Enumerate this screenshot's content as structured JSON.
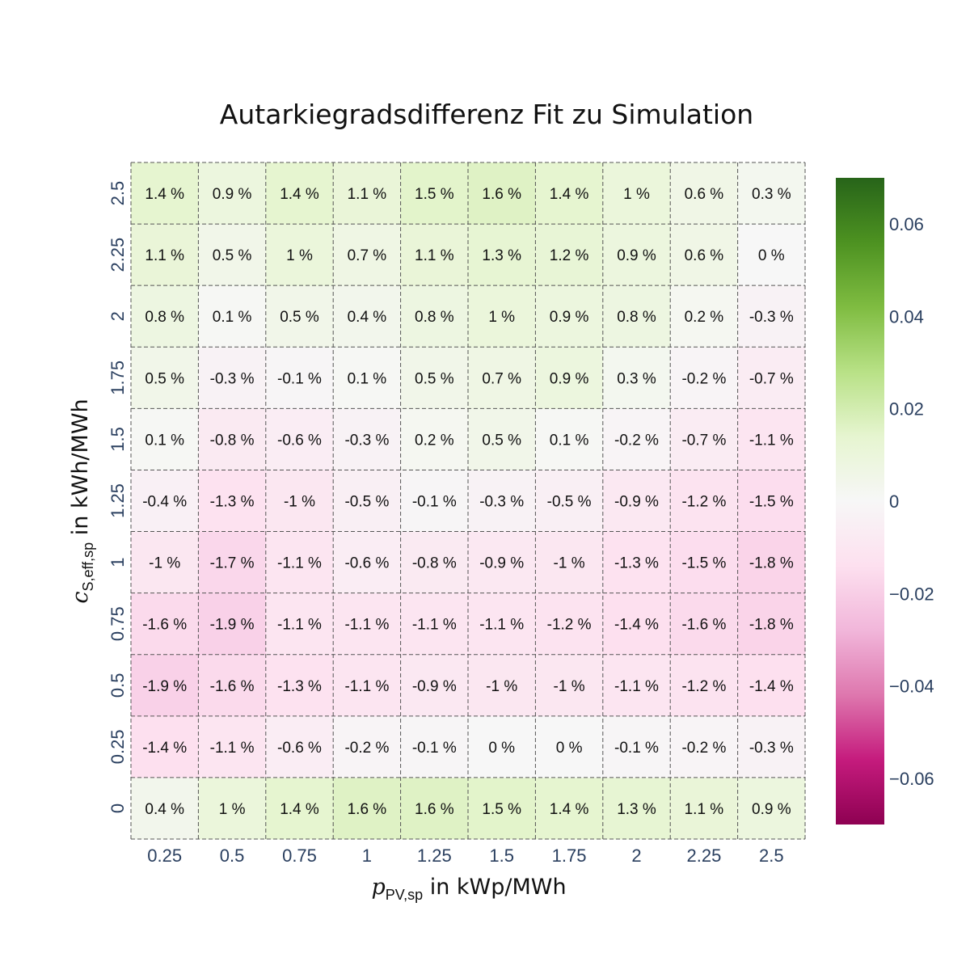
{
  "chart_data": {
    "type": "heatmap",
    "title": "Autarkiegradsdifferenz Fit zu Simulation",
    "xlabel": {
      "var": "p",
      "sub": "PV,sp",
      "unit": " in kWp/MWh"
    },
    "ylabel": {
      "var": "c",
      "sub": "S,eff,sp",
      "unit": " in kWh/MWh"
    },
    "x": [
      "0.25",
      "0.5",
      "0.75",
      "1",
      "1.25",
      "1.5",
      "1.75",
      "2",
      "2.25",
      "2.5"
    ],
    "y": [
      "0",
      "0.25",
      "0.5",
      "0.75",
      "1",
      "1.25",
      "1.5",
      "1.75",
      "2",
      "2.25",
      "2.5"
    ],
    "z": [
      [
        0.004,
        0.01,
        0.014,
        0.016,
        0.016,
        0.015,
        0.014,
        0.013,
        0.011,
        0.009
      ],
      [
        -0.014,
        -0.011,
        -0.006,
        -0.002,
        -0.001,
        0.0,
        0.0,
        -0.001,
        -0.002,
        -0.003
      ],
      [
        -0.019,
        -0.016,
        -0.013,
        -0.011,
        -0.009,
        -0.01,
        -0.01,
        -0.011,
        -0.012,
        -0.014
      ],
      [
        -0.016,
        -0.019,
        -0.011,
        -0.011,
        -0.011,
        -0.011,
        -0.012,
        -0.014,
        -0.016,
        -0.018
      ],
      [
        -0.01,
        -0.017,
        -0.011,
        -0.006,
        -0.008,
        -0.009,
        -0.01,
        -0.013,
        -0.015,
        -0.018
      ],
      [
        -0.004,
        -0.013,
        -0.01,
        -0.005,
        -0.001,
        -0.003,
        -0.005,
        -0.009,
        -0.012,
        -0.015
      ],
      [
        0.001,
        -0.008,
        -0.006,
        -0.003,
        0.002,
        0.005,
        0.001,
        -0.002,
        -0.007,
        -0.011
      ],
      [
        0.005,
        -0.003,
        -0.001,
        0.001,
        0.005,
        0.007,
        0.009,
        0.003,
        -0.002,
        -0.007
      ],
      [
        0.008,
        0.001,
        0.005,
        0.004,
        0.008,
        0.01,
        0.009,
        0.008,
        0.002,
        -0.003
      ],
      [
        0.011,
        0.005,
        0.01,
        0.007,
        0.011,
        0.013,
        0.012,
        0.009,
        0.006,
        0.0
      ],
      [
        0.014,
        0.009,
        0.014,
        0.011,
        0.015,
        0.016,
        0.014,
        0.01,
        0.006,
        0.003
      ]
    ],
    "labels": [
      [
        "0.4 %",
        "1 %",
        "1.4 %",
        "1.6 %",
        "1.6 %",
        "1.5 %",
        "1.4 %",
        "1.3 %",
        "1.1 %",
        "0.9 %"
      ],
      [
        "-1.4 %",
        "-1.1 %",
        "-0.6 %",
        "-0.2 %",
        "-0.1 %",
        "0 %",
        "0 %",
        "-0.1 %",
        "-0.2 %",
        "-0.3 %"
      ],
      [
        "-1.9 %",
        "-1.6 %",
        "-1.3 %",
        "-1.1 %",
        "-0.9 %",
        "-1 %",
        "-1 %",
        "-1.1 %",
        "-1.2 %",
        "-1.4 %"
      ],
      [
        "-1.6 %",
        "-1.9 %",
        "-1.1 %",
        "-1.1 %",
        "-1.1 %",
        "-1.1 %",
        "-1.2 %",
        "-1.4 %",
        "-1.6 %",
        "-1.8 %"
      ],
      [
        "-1 %",
        "-1.7 %",
        "-1.1 %",
        "-0.6 %",
        "-0.8 %",
        "-0.9 %",
        "-1 %",
        "-1.3 %",
        "-1.5 %",
        "-1.8 %"
      ],
      [
        "-0.4 %",
        "-1.3 %",
        "-1 %",
        "-0.5 %",
        "-0.1 %",
        "-0.3 %",
        "-0.5 %",
        "-0.9 %",
        "-1.2 %",
        "-1.5 %"
      ],
      [
        "0.1 %",
        "-0.8 %",
        "-0.6 %",
        "-0.3 %",
        "0.2 %",
        "0.5 %",
        "0.1 %",
        "-0.2 %",
        "-0.7 %",
        "-1.1 %"
      ],
      [
        "0.5 %",
        "-0.3 %",
        "-0.1 %",
        "0.1 %",
        "0.5 %",
        "0.7 %",
        "0.9 %",
        "0.3 %",
        "-0.2 %",
        "-0.7 %"
      ],
      [
        "0.8 %",
        "0.1 %",
        "0.5 %",
        "0.4 %",
        "0.8 %",
        "1 %",
        "0.9 %",
        "0.8 %",
        "0.2 %",
        "-0.3 %"
      ],
      [
        "1.1 %",
        "0.5 %",
        "1 %",
        "0.7 %",
        "1.1 %",
        "1.3 %",
        "1.2 %",
        "0.9 %",
        "0.6 %",
        "0 %"
      ],
      [
        "1.4 %",
        "0.9 %",
        "1.4 %",
        "1.1 %",
        "1.5 %",
        "1.6 %",
        "1.4 %",
        "1 %",
        "0.6 %",
        "0.3 %"
      ]
    ],
    "colorscale": {
      "name": "PiYG",
      "zmin": -0.07,
      "zmax": 0.07,
      "stops": [
        "#8e0152",
        "#c51b7d",
        "#de77ae",
        "#f1b6da",
        "#fde0ef",
        "#f7f7f7",
        "#e6f5d0",
        "#b8e186",
        "#7fbc41",
        "#4d9221",
        "#276419"
      ]
    },
    "colorbar": {
      "tickvals": [
        0.06,
        0.04,
        0.02,
        0,
        -0.02,
        -0.04,
        -0.06
      ],
      "ticktext": [
        "0.06",
        "0.04",
        "0.02",
        "0",
        "−0.02",
        "−0.04",
        "−0.06"
      ]
    },
    "grid": "dashed"
  }
}
